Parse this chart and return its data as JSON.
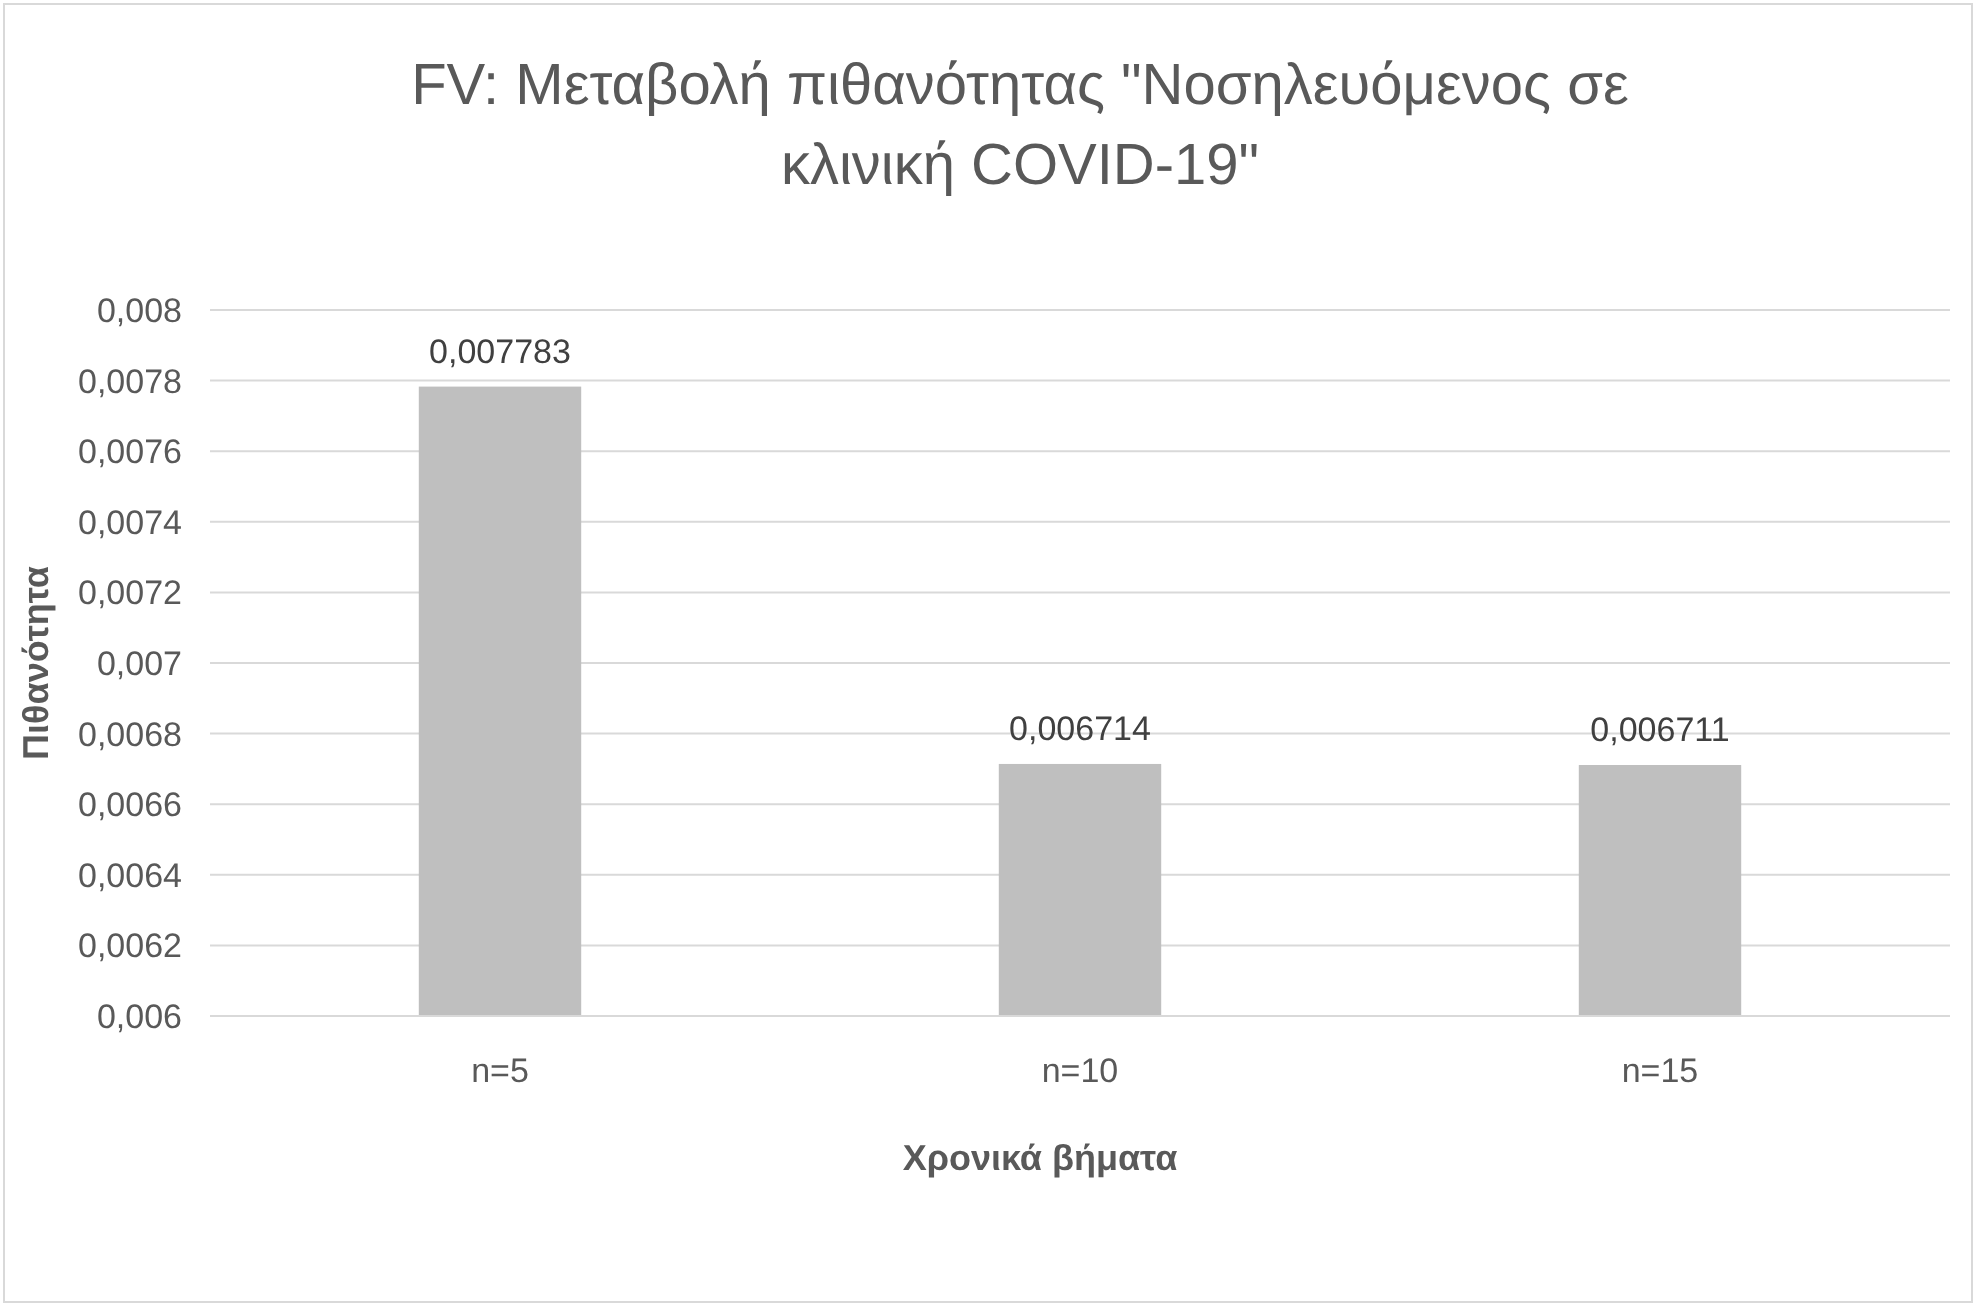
{
  "chart_data": {
    "type": "bar",
    "title": "FV: Μεταβολή πιθανότητας \"Νοσηλευόμενος σε κλινική COVID-19\"",
    "xlabel": "Χρονικά βήματα",
    "ylabel": "Πιθανότητα",
    "categories": [
      "n=5",
      "n=10",
      "n=15"
    ],
    "values": [
      0.007783,
      0.006714,
      0.006711
    ],
    "value_labels": [
      "0,007783",
      "0,006714",
      "0,006711"
    ],
    "color": "#bfbfbf",
    "ylim": [
      0.006,
      0.008
    ],
    "yticks": [
      {
        "value": 0.006,
        "label": "0,006"
      },
      {
        "value": 0.0062,
        "label": "0,0062"
      },
      {
        "value": 0.0064,
        "label": "0,0064"
      },
      {
        "value": 0.0066,
        "label": "0,0066"
      },
      {
        "value": 0.0068,
        "label": "0,0068"
      },
      {
        "value": 0.007,
        "label": "0,007"
      },
      {
        "value": 0.0072,
        "label": "0,0072"
      },
      {
        "value": 0.0074,
        "label": "0,0074"
      },
      {
        "value": 0.0076,
        "label": "0,0076"
      },
      {
        "value": 0.0078,
        "label": "0,0078"
      },
      {
        "value": 0.008,
        "label": "0,008"
      }
    ],
    "grid": "y"
  }
}
